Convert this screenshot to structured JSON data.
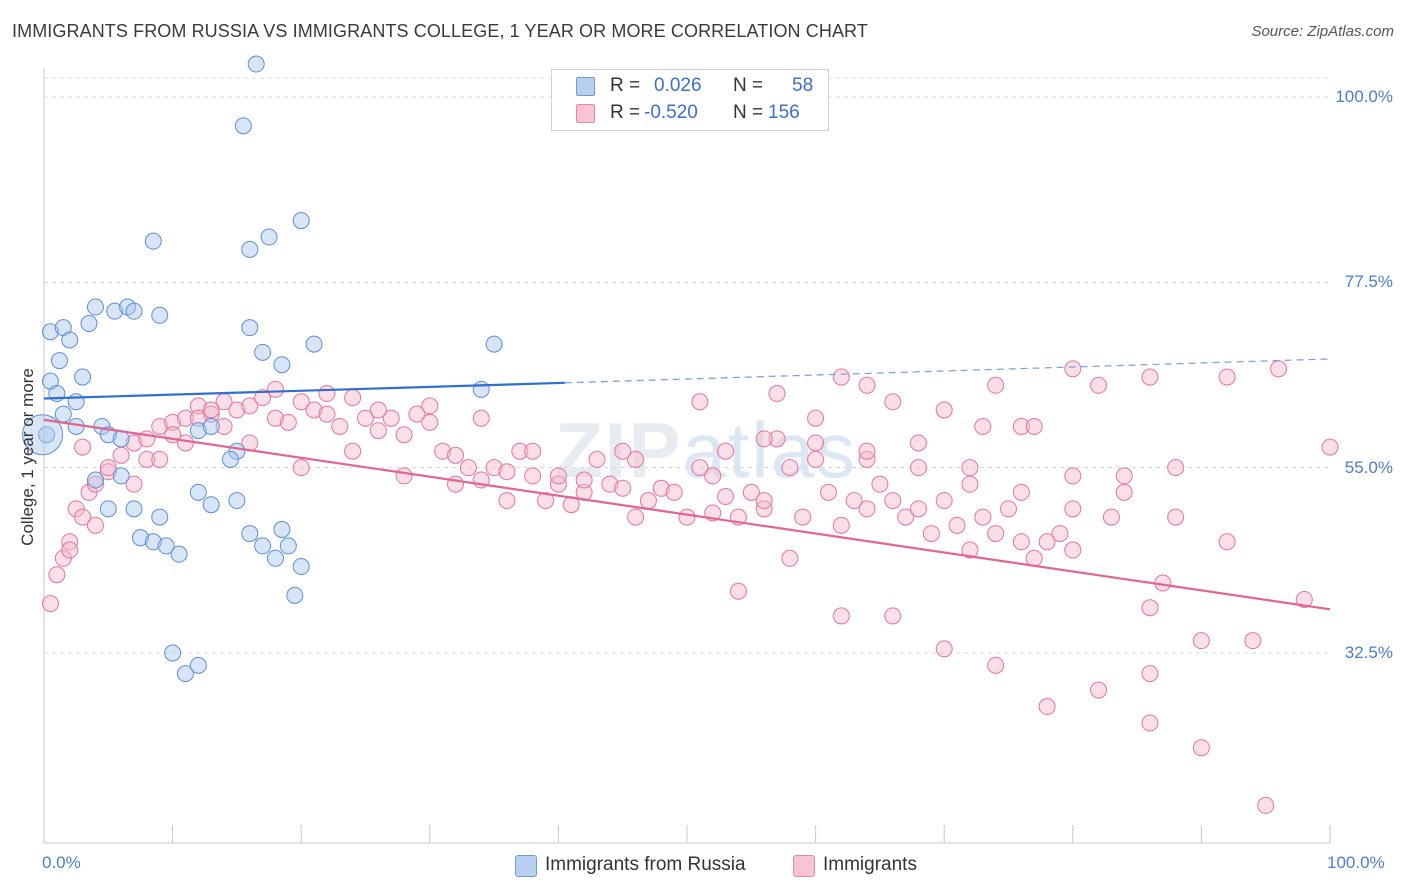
{
  "title": "IMMIGRANTS FROM RUSSIA VS IMMIGRANTS COLLEGE, 1 YEAR OR MORE CORRELATION CHART",
  "source": "Source: ZipAtlas.com",
  "watermark": {
    "part1": "ZIP",
    "part2": "atlas"
  },
  "colors": {
    "blue": "#5b8fd8",
    "blue_fill": "#a9c6ee",
    "pink": "#e7749a",
    "pink_fill": "#f5b8cb",
    "tick_text": "#4a7fcf",
    "grid": "#d8d8d8"
  },
  "legend": {
    "rows": [
      {
        "r_label": "R =",
        "r_value": "0.026",
        "n_label": "N =",
        "n_value": "58"
      },
      {
        "r_label": "R =",
        "r_value": "-0.520",
        "n_label": "N =",
        "n_value": "156"
      }
    ]
  },
  "bottom_legend": [
    "Immigrants from Russia",
    "Immigrants"
  ],
  "chart_data": {
    "type": "scatter",
    "title": "IMMIGRANTS FROM RUSSIA VS IMMIGRANTS COLLEGE, 1 YEAR OR MORE CORRELATION CHART",
    "xlabel": "",
    "ylabel": "College, 1 year or more",
    "xlim": [
      0,
      100
    ],
    "ylim": [
      10,
      103
    ],
    "x_tick_labels": [
      "0.0%",
      "100.0%"
    ],
    "y_ticks": [
      32.5,
      55.0,
      77.5,
      100.0
    ],
    "y_tick_labels": [
      "32.5%",
      "55.0%",
      "77.5%",
      "100.0%"
    ],
    "series": [
      {
        "name": "Immigrants from Russia",
        "R": 0.026,
        "N": 58,
        "trend": {
          "x0": 0,
          "y0": 63.4,
          "x1": 40.5,
          "y1": 65.3,
          "dashed_to_x": 100,
          "dashed_to_y": 68.2
        },
        "points": [
          [
            0.5,
            65.5
          ],
          [
            1,
            64
          ],
          [
            1.5,
            61.5
          ],
          [
            2.5,
            60
          ],
          [
            4.5,
            60
          ],
          [
            5,
            59
          ],
          [
            6,
            58.5
          ],
          [
            0.5,
            71.5
          ],
          [
            1.5,
            72
          ],
          [
            1.2,
            68
          ],
          [
            2,
            70.5
          ],
          [
            3,
            66
          ],
          [
            3.5,
            72.5
          ],
          [
            2.5,
            63
          ],
          [
            4,
            74.5
          ],
          [
            5.5,
            74
          ],
          [
            6.5,
            74.5
          ],
          [
            7,
            74
          ],
          [
            8.5,
            82.5
          ],
          [
            9,
            73.5
          ],
          [
            12,
            59.5
          ],
          [
            13,
            60
          ],
          [
            15,
            57
          ],
          [
            14.5,
            56
          ],
          [
            4,
            53.5
          ],
          [
            6,
            54
          ],
          [
            5,
            50
          ],
          [
            7,
            50
          ],
          [
            9,
            49
          ],
          [
            7.5,
            46.5
          ],
          [
            8.5,
            46
          ],
          [
            10.5,
            44.5
          ],
          [
            9.5,
            45.5
          ],
          [
            11,
            30
          ],
          [
            12,
            31
          ],
          [
            13,
            50.5
          ],
          [
            15,
            51
          ],
          [
            16,
            47
          ],
          [
            18.5,
            47.5
          ],
          [
            17,
            45.5
          ],
          [
            19,
            45.5
          ],
          [
            18,
            44
          ],
          [
            20,
            43
          ],
          [
            19.5,
            39.5
          ],
          [
            10,
            32.5
          ],
          [
            12,
            52
          ],
          [
            15.5,
            96.5
          ],
          [
            16.5,
            104
          ],
          [
            16,
            81.5
          ],
          [
            17.5,
            83
          ],
          [
            20,
            85
          ],
          [
            16,
            72
          ],
          [
            17,
            69
          ],
          [
            18.5,
            67.5
          ],
          [
            21,
            70
          ],
          [
            35,
            70
          ],
          [
            34,
            64.5
          ],
          [
            0.2,
            59
          ]
        ]
      },
      {
        "name": "Immigrants",
        "R": -0.52,
        "N": 156,
        "trend": {
          "x0": 0,
          "y0": 60.8,
          "x1": 100,
          "y1": 37.8
        },
        "points": [
          [
            0.5,
            38.5
          ],
          [
            1,
            42
          ],
          [
            1.5,
            44
          ],
          [
            2,
            46
          ],
          [
            2.5,
            50
          ],
          [
            3,
            49
          ],
          [
            3.5,
            52
          ],
          [
            4,
            53
          ],
          [
            5,
            54.5
          ],
          [
            6,
            56.5
          ],
          [
            7,
            58
          ],
          [
            8,
            58.5
          ],
          [
            9,
            60
          ],
          [
            10,
            60.5
          ],
          [
            11,
            61
          ],
          [
            12,
            62.5
          ],
          [
            13,
            61.5
          ],
          [
            14,
            60
          ],
          [
            15,
            62
          ],
          [
            16,
            62.5
          ],
          [
            17,
            63.5
          ],
          [
            18,
            61
          ],
          [
            19,
            60.5
          ],
          [
            20,
            63
          ],
          [
            21,
            62
          ],
          [
            22,
            61.5
          ],
          [
            23,
            60
          ],
          [
            24,
            63.5
          ],
          [
            25,
            61
          ],
          [
            26,
            59.5
          ],
          [
            27,
            61
          ],
          [
            28,
            59
          ],
          [
            29,
            61.5
          ],
          [
            30,
            60.5
          ],
          [
            31,
            57
          ],
          [
            32,
            56.5
          ],
          [
            33,
            55
          ],
          [
            34,
            53.5
          ],
          [
            35,
            55
          ],
          [
            36,
            54.5
          ],
          [
            37,
            57
          ],
          [
            38,
            54
          ],
          [
            39,
            51
          ],
          [
            40,
            53
          ],
          [
            41,
            50.5
          ],
          [
            42,
            52
          ],
          [
            43,
            56
          ],
          [
            44,
            53
          ],
          [
            45,
            52.5
          ],
          [
            46,
            49
          ],
          [
            47,
            51
          ],
          [
            48,
            52.5
          ],
          [
            49,
            52
          ],
          [
            50,
            49
          ],
          [
            51,
            55
          ],
          [
            52,
            54
          ],
          [
            53,
            51.5
          ],
          [
            54,
            49
          ],
          [
            55,
            52
          ],
          [
            56,
            50
          ],
          [
            57,
            58.5
          ],
          [
            58,
            55
          ],
          [
            59,
            49
          ],
          [
            60,
            61
          ],
          [
            61,
            52
          ],
          [
            62,
            48
          ],
          [
            63,
            51
          ],
          [
            64,
            50
          ],
          [
            65,
            53
          ],
          [
            66,
            51
          ],
          [
            67,
            49
          ],
          [
            68,
            50
          ],
          [
            69,
            47
          ],
          [
            70,
            51
          ],
          [
            71,
            48
          ],
          [
            72,
            45
          ],
          [
            73,
            49
          ],
          [
            74,
            47
          ],
          [
            75,
            50
          ],
          [
            76,
            46
          ],
          [
            77,
            44
          ],
          [
            78,
            46
          ],
          [
            79,
            47
          ],
          [
            80,
            45
          ],
          [
            3,
            57.5
          ],
          [
            5,
            55
          ],
          [
            8,
            56
          ],
          [
            10,
            59
          ],
          [
            12,
            61
          ],
          [
            14,
            63
          ],
          [
            18,
            64.5
          ],
          [
            22,
            64
          ],
          [
            26,
            62
          ],
          [
            30,
            62.5
          ],
          [
            34,
            61
          ],
          [
            38,
            57
          ],
          [
            42,
            53.5
          ],
          [
            46,
            56
          ],
          [
            52,
            49.5
          ],
          [
            56,
            51
          ],
          [
            60,
            56
          ],
          [
            64,
            56
          ],
          [
            68,
            58
          ],
          [
            72,
            53
          ],
          [
            76,
            60
          ],
          [
            80,
            54
          ],
          [
            84,
            54
          ],
          [
            88,
            49
          ],
          [
            92,
            46
          ],
          [
            54,
            40
          ],
          [
            58,
            44
          ],
          [
            62,
            37
          ],
          [
            66,
            37
          ],
          [
            70,
            33
          ],
          [
            74,
            31
          ],
          [
            78,
            26
          ],
          [
            82,
            28
          ],
          [
            86,
            30
          ],
          [
            90,
            34
          ],
          [
            94,
            34
          ],
          [
            98,
            39
          ],
          [
            86,
            24
          ],
          [
            90,
            21
          ],
          [
            95,
            14
          ],
          [
            83,
            49
          ],
          [
            86,
            38
          ],
          [
            87,
            41
          ],
          [
            82,
            65
          ],
          [
            77,
            60
          ],
          [
            73,
            60
          ],
          [
            66,
            63
          ],
          [
            64,
            65
          ],
          [
            57,
            64
          ],
          [
            51,
            63
          ],
          [
            45,
            57
          ],
          [
            40,
            54
          ],
          [
            36,
            51
          ],
          [
            32,
            53
          ],
          [
            28,
            54
          ],
          [
            24,
            57
          ],
          [
            20,
            55
          ],
          [
            16,
            58
          ],
          [
            13,
            62
          ],
          [
            11,
            58
          ],
          [
            9,
            56
          ],
          [
            7,
            53
          ],
          [
            4,
            48
          ],
          [
            2,
            45
          ],
          [
            62,
            66
          ],
          [
            70,
            62
          ],
          [
            74,
            65
          ],
          [
            80,
            67
          ],
          [
            86,
            66
          ],
          [
            92,
            66
          ],
          [
            96,
            67
          ],
          [
            100,
            57.5
          ],
          [
            88,
            55
          ],
          [
            84,
            52
          ],
          [
            80,
            50
          ],
          [
            76,
            52
          ],
          [
            72,
            55
          ],
          [
            68,
            55
          ],
          [
            64,
            57
          ],
          [
            60,
            58
          ],
          [
            56,
            58.5
          ],
          [
            53,
            57
          ]
        ]
      }
    ]
  }
}
